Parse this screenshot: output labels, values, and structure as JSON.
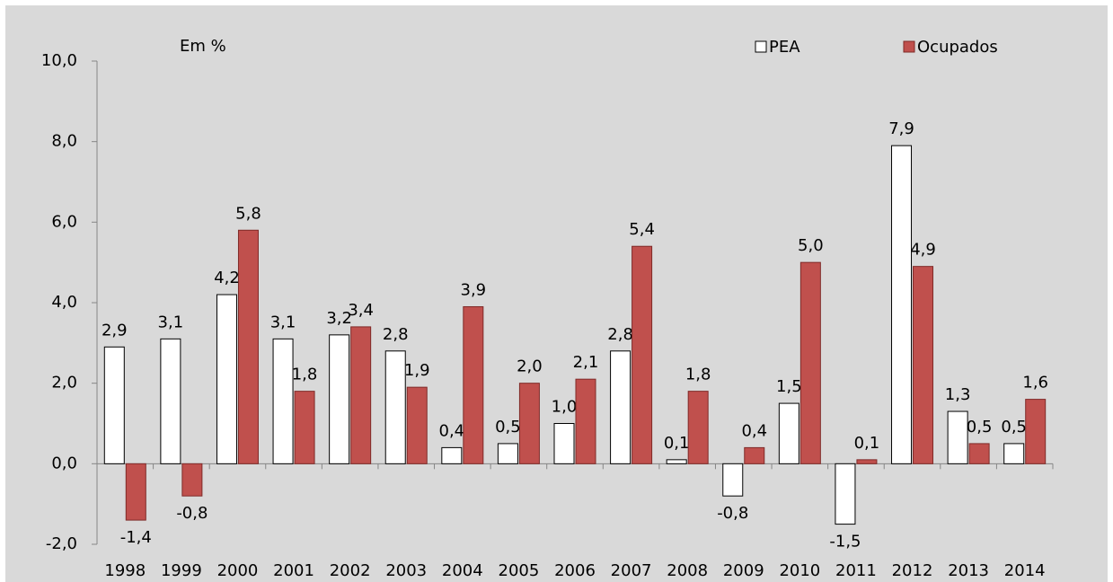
{
  "chart_data": {
    "type": "bar",
    "annotation": "Em %",
    "categories": [
      "1998",
      "1999",
      "2000",
      "2001",
      "2002",
      "2003",
      "2004",
      "2005",
      "2006",
      "2007",
      "2008",
      "2009",
      "2010",
      "2011",
      "2012",
      "2013",
      "2014"
    ],
    "series": [
      {
        "name": "PEA",
        "color": "#ffffff",
        "values": [
          2.9,
          3.1,
          4.2,
          3.1,
          3.2,
          2.8,
          0.4,
          0.5,
          1.0,
          2.8,
          0.1,
          -0.8,
          1.5,
          -1.5,
          7.9,
          1.3,
          0.5
        ],
        "value_labels": [
          "2,9",
          "3,1",
          "4,2",
          "3,1",
          "3,2",
          "2,8",
          "0,4",
          "0,5",
          "1,0",
          "2,8",
          "0,1",
          "-0,8",
          "1,5",
          "-1,5",
          "7,9",
          "1,3",
          "0,5"
        ]
      },
      {
        "name": "Ocupados",
        "color": "#c0504d",
        "values": [
          -1.4,
          -0.8,
          5.8,
          1.8,
          3.4,
          1.9,
          3.9,
          2.0,
          2.1,
          5.4,
          1.8,
          0.4,
          5.0,
          0.1,
          4.9,
          0.5,
          1.6
        ],
        "value_labels": [
          "-1,4",
          "-0,8",
          "5,8",
          "1,8",
          "3,4",
          "1,9",
          "3,9",
          "2,0",
          "2,1",
          "5,4",
          "1,8",
          "0,4",
          "5,0",
          "0,1",
          "4,9",
          "0,5",
          "1,6"
        ]
      }
    ],
    "ylim": [
      -2,
      10
    ],
    "yticks": [
      {
        "value": -2,
        "label": "-2,0"
      },
      {
        "value": 0,
        "label": "0,0"
      },
      {
        "value": 2,
        "label": "2,0"
      },
      {
        "value": 4,
        "label": "4,0"
      },
      {
        "value": 6,
        "label": "6,0"
      },
      {
        "value": 8,
        "label": "8,0"
      },
      {
        "value": 10,
        "label": "10,0"
      }
    ],
    "grid": false,
    "legend": "top-right"
  }
}
